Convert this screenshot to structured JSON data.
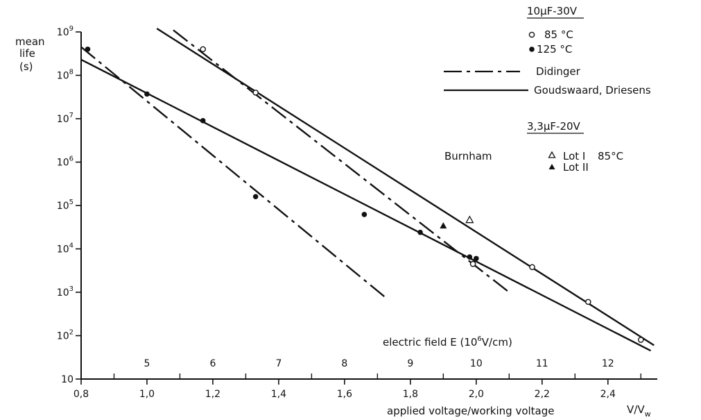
{
  "chart_data": {
    "type": "scatter",
    "title": "",
    "y_axis": {
      "label_lines": [
        "mean",
        "life",
        "(s)"
      ],
      "scale": "log",
      "range": [
        10,
        1000000000
      ],
      "ticks": [
        {
          "value": 10,
          "label": "10"
        },
        {
          "value": 100,
          "base": "10",
          "exp": "2"
        },
        {
          "value": 1000,
          "base": "10",
          "exp": "3"
        },
        {
          "value": 10000,
          "base": "10",
          "exp": "4"
        },
        {
          "value": 100000,
          "base": "10",
          "exp": "5"
        },
        {
          "value": 1000000,
          "base": "10",
          "exp": "6"
        },
        {
          "value": 10000000,
          "base": "10",
          "exp": "7"
        },
        {
          "value": 100000000,
          "base": "10",
          "exp": "8"
        },
        {
          "value": 1000000000,
          "base": "10",
          "exp": "9"
        }
      ]
    },
    "x_axis": {
      "label": "applied voltage/working voltage",
      "unit_main": "V/V",
      "unit_sub": "w",
      "range": [
        0.8,
        2.55
      ],
      "ticks": [
        {
          "value": 0.8,
          "label": "0,8"
        },
        {
          "value": 1.0,
          "label": "1,0"
        },
        {
          "value": 1.2,
          "label": "1,2"
        },
        {
          "value": 1.4,
          "label": "1,4"
        },
        {
          "value": 1.6,
          "label": "1,6"
        },
        {
          "value": 1.8,
          "label": "1,8"
        },
        {
          "value": 2.0,
          "label": "2,0"
        },
        {
          "value": 2.2,
          "label": "2,2"
        },
        {
          "value": 2.4,
          "label": "2,4"
        }
      ]
    },
    "x2_axis": {
      "label_main": "electric field E  (10",
      "label_sup": "6",
      "label_tail": "V/cm)",
      "ticks": [
        {
          "x": 1.0,
          "label": "5"
        },
        {
          "x": 1.2,
          "label": "6"
        },
        {
          "x": 1.4,
          "label": "7"
        },
        {
          "x": 1.6,
          "label": "8"
        },
        {
          "x": 1.8,
          "label": "9"
        },
        {
          "x": 2.0,
          "label": "10"
        },
        {
          "x": 2.2,
          "label": "11"
        },
        {
          "x": 2.4,
          "label": "12"
        }
      ]
    },
    "legend": {
      "group1_heading": "10µF-30V",
      "open_circle_label": "85 °C",
      "filled_circle_label": "125 °C",
      "didinger_label": "Didinger",
      "goudswaard_label": "Goudswaard, Driesens",
      "group2_heading": "3,3µF-20V",
      "burnham_label": "Burnham",
      "lot1_label": "Lot I",
      "lot2_label": "Lot II",
      "burnham_temp": "85°C"
    },
    "series": [
      {
        "name": "85 °C",
        "marker": "open-circle",
        "points": [
          {
            "x": 1.17,
            "y": 400000000
          },
          {
            "x": 1.33,
            "y": 40000000
          },
          {
            "x": 1.99,
            "y": 4500
          },
          {
            "x": 2.17,
            "y": 3800
          },
          {
            "x": 2.34,
            "y": 600
          },
          {
            "x": 2.5,
            "y": 80
          }
        ]
      },
      {
        "name": "125 °C",
        "marker": "filled-circle",
        "points": [
          {
            "x": 0.82,
            "y": 400000000
          },
          {
            "x": 1.0,
            "y": 37000000
          },
          {
            "x": 1.17,
            "y": 9000000
          },
          {
            "x": 1.33,
            "y": 160000
          },
          {
            "x": 1.66,
            "y": 62000
          },
          {
            "x": 1.83,
            "y": 24000
          },
          {
            "x": 1.98,
            "y": 6500
          },
          {
            "x": 2.0,
            "y": 6000
          }
        ]
      },
      {
        "name": "Lot I",
        "marker": "open-triangle",
        "points": [
          {
            "x": 1.98,
            "y": 45000
          }
        ]
      },
      {
        "name": "Lot II",
        "marker": "filled-triangle",
        "points": [
          {
            "x": 1.9,
            "y": 33000
          }
        ]
      }
    ],
    "lines": [
      {
        "name": "Didinger",
        "style": "dash-dot",
        "points": [
          {
            "x": 0.8,
            "y": 450000000
          },
          {
            "x": 1.73,
            "y": 700
          }
        ]
      },
      {
        "name": "Didinger",
        "style": "dash-dot",
        "points": [
          {
            "x": 1.08,
            "y": 1100000000
          },
          {
            "x": 2.1,
            "y": 1000
          }
        ]
      },
      {
        "name": "Goudswaard, Driesens",
        "style": "solid",
        "points": [
          {
            "x": 0.8,
            "y": 230000000
          },
          {
            "x": 2.53,
            "y": 45
          }
        ]
      },
      {
        "name": "Goudswaard, Driesens",
        "style": "solid",
        "points": [
          {
            "x": 1.03,
            "y": 1200000000
          },
          {
            "x": 2.54,
            "y": 60
          }
        ]
      }
    ]
  }
}
